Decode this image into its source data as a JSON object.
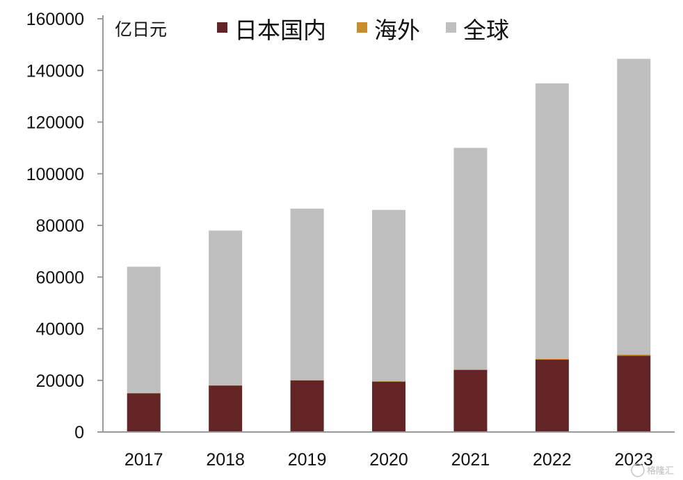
{
  "chart_data": {
    "type": "bar",
    "stacked": true,
    "unit_label": "亿日元",
    "categories": [
      "2017",
      "2018",
      "2019",
      "2020",
      "2021",
      "2022",
      "2023"
    ],
    "series": [
      {
        "name": "日本国内",
        "color": "#632426",
        "values": [
          15000,
          18000,
          20000,
          19500,
          24000,
          28000,
          29500
        ]
      },
      {
        "name": "海外",
        "color": "#C98B2E",
        "values": [
          100,
          100,
          150,
          150,
          250,
          300,
          500
        ]
      },
      {
        "name": "全球",
        "color": "#BFBFBF",
        "values": [
          48900,
          59900,
          66350,
          66350,
          85750,
          106700,
          114500
        ]
      }
    ],
    "yticks": [
      "0",
      "20000",
      "40000",
      "60000",
      "80000",
      "100000",
      "120000",
      "140000",
      "160000"
    ],
    "ylim": [
      0,
      160000
    ],
    "legend_position": "top",
    "grid": false,
    "watermark": "格隆汇"
  }
}
